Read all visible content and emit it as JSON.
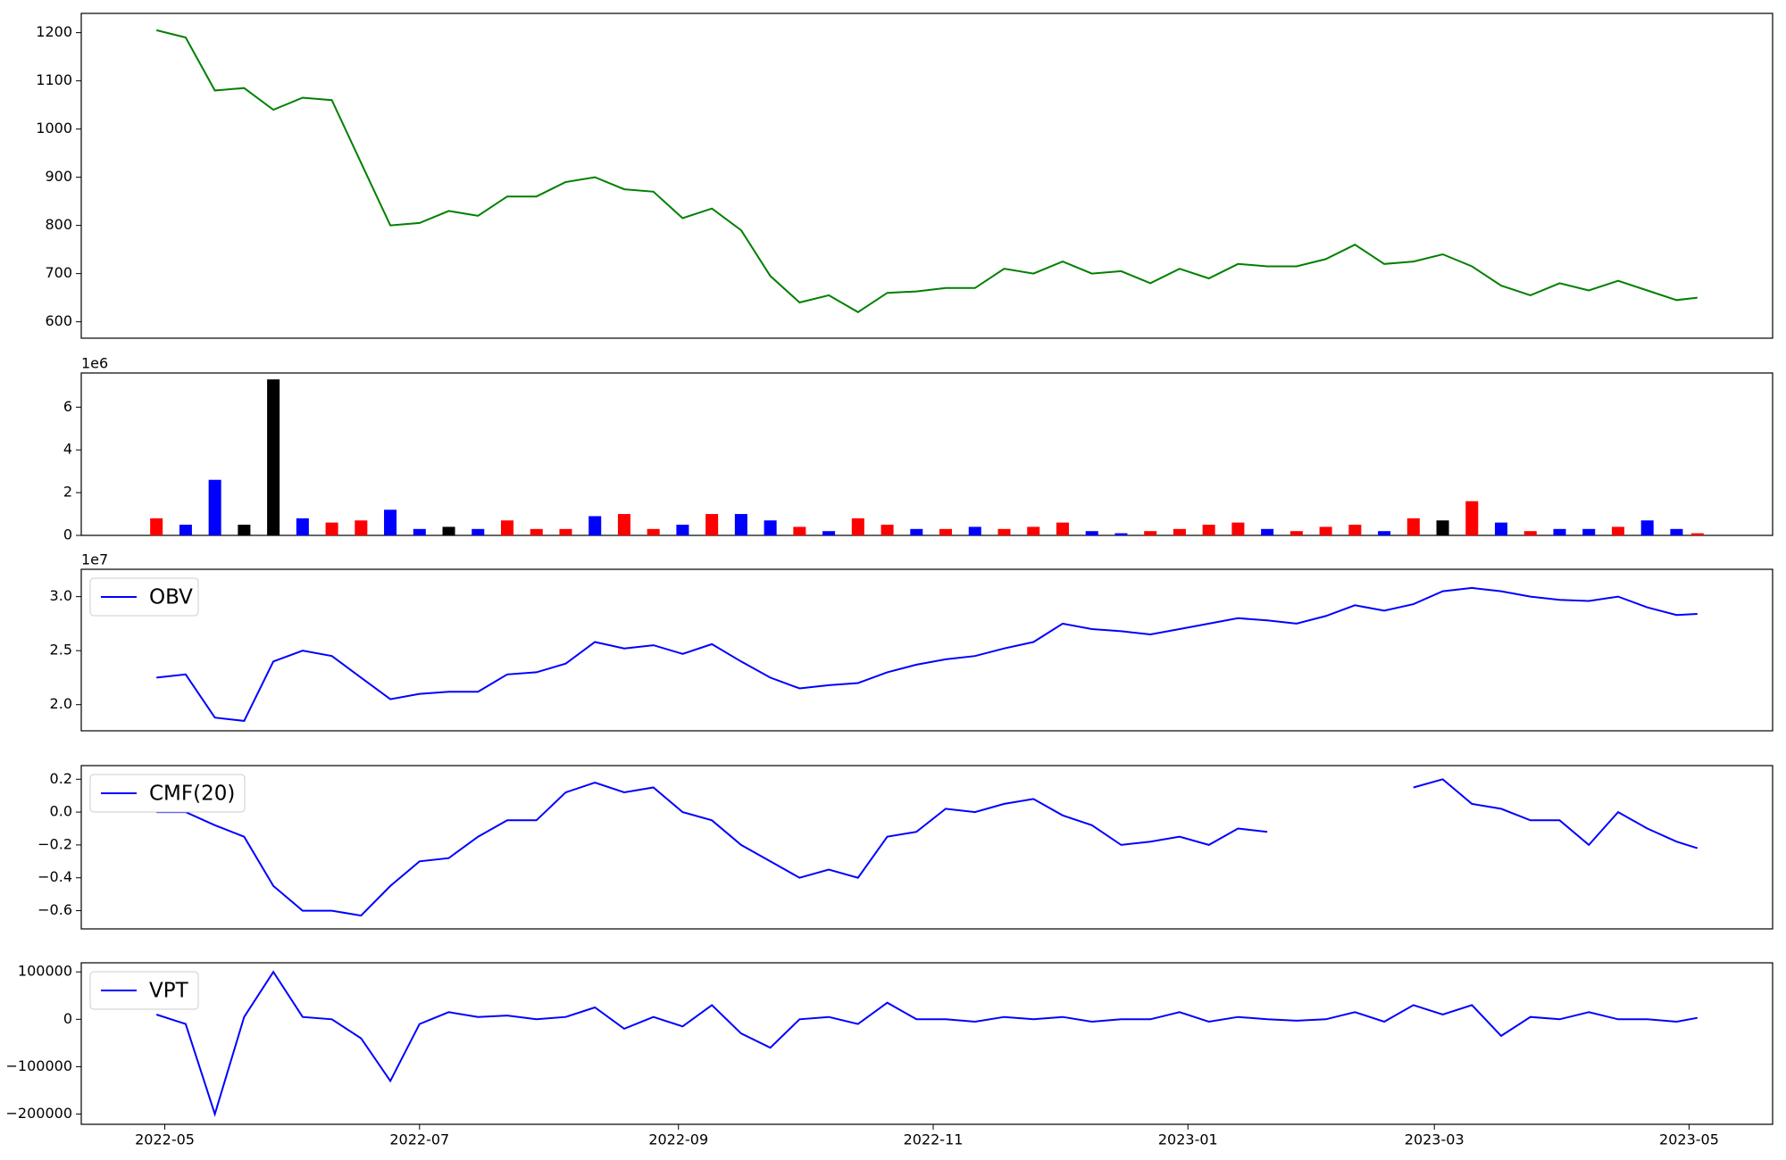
{
  "chart_data": [
    {
      "type": "line",
      "x": [
        "2022-04-29",
        "2022-05-06",
        "2022-05-13",
        "2022-05-20",
        "2022-05-27",
        "2022-06-03",
        "2022-06-10",
        "2022-06-17",
        "2022-06-24",
        "2022-07-01",
        "2022-07-08",
        "2022-07-15",
        "2022-07-22",
        "2022-07-29",
        "2022-08-05",
        "2022-08-12",
        "2022-08-19",
        "2022-08-26",
        "2022-09-02",
        "2022-09-09",
        "2022-09-16",
        "2022-09-23",
        "2022-09-30",
        "2022-10-07",
        "2022-10-14",
        "2022-10-21",
        "2022-10-28",
        "2022-11-04",
        "2022-11-11",
        "2022-11-18",
        "2022-11-25",
        "2022-12-02",
        "2022-12-09",
        "2022-12-16",
        "2022-12-23",
        "2022-12-30",
        "2023-01-06",
        "2023-01-13",
        "2023-01-20",
        "2023-01-27",
        "2023-02-03",
        "2023-02-10",
        "2023-02-17",
        "2023-02-24",
        "2023-03-03",
        "2023-03-10",
        "2023-03-17",
        "2023-03-24",
        "2023-03-31",
        "2023-04-07",
        "2023-04-14",
        "2023-04-21",
        "2023-04-28",
        "2023-05-03"
      ],
      "series": [
        {
          "color": "#008000",
          "values": [
            1205,
            1190,
            1080,
            1085,
            1040,
            1065,
            1060,
            930,
            800,
            805,
            830,
            820,
            860,
            860,
            890,
            900,
            875,
            870,
            815,
            835,
            790,
            695,
            640,
            655,
            620,
            660,
            663,
            670,
            670,
            710,
            700,
            725,
            700,
            705,
            680,
            710,
            690,
            720,
            715,
            715,
            730,
            760,
            720,
            725,
            740,
            715,
            675,
            655,
            680,
            665,
            685,
            665,
            645,
            650
          ]
        }
      ],
      "ylim": [
        566,
        1240
      ],
      "yticks": [
        600,
        700,
        800,
        900,
        1000,
        1100,
        1200
      ]
    },
    {
      "type": "bar",
      "x": [
        "2022-04-29",
        "2022-05-06",
        "2022-05-13",
        "2022-05-20",
        "2022-05-27",
        "2022-06-03",
        "2022-06-10",
        "2022-06-17",
        "2022-06-24",
        "2022-07-01",
        "2022-07-08",
        "2022-07-15",
        "2022-07-22",
        "2022-07-29",
        "2022-08-05",
        "2022-08-12",
        "2022-08-19",
        "2022-08-26",
        "2022-09-02",
        "2022-09-09",
        "2022-09-16",
        "2022-09-23",
        "2022-09-30",
        "2022-10-07",
        "2022-10-14",
        "2022-10-21",
        "2022-10-28",
        "2022-11-04",
        "2022-11-11",
        "2022-11-18",
        "2022-11-25",
        "2022-12-02",
        "2022-12-09",
        "2022-12-16",
        "2022-12-23",
        "2022-12-30",
        "2023-01-06",
        "2023-01-13",
        "2023-01-20",
        "2023-01-27",
        "2023-02-03",
        "2023-02-10",
        "2023-02-17",
        "2023-02-24",
        "2023-03-03",
        "2023-03-10",
        "2023-03-17",
        "2023-03-24",
        "2023-03-31",
        "2023-04-07",
        "2023-04-14",
        "2023-04-21",
        "2023-04-28",
        "2023-05-03"
      ],
      "values": [
        800000,
        500000,
        2600000,
        500000,
        7300000,
        800000,
        600000,
        700000,
        1200000,
        300000,
        400000,
        300000,
        700000,
        300000,
        300000,
        900000,
        1000000,
        300000,
        500000,
        1000000,
        1000000,
        700000,
        400000,
        200000,
        800000,
        500000,
        300000,
        300000,
        400000,
        300000,
        400000,
        600000,
        200000,
        100000,
        200000,
        300000,
        500000,
        600000,
        300000,
        200000,
        400000,
        500000,
        200000,
        800000,
        700000,
        1600000,
        600000,
        200000,
        300000,
        300000,
        400000,
        700000,
        300000,
        100000
      ],
      "colors": [
        "#ff0000",
        "#0000ff",
        "#0000ff",
        "#000000",
        "#000000",
        "#0000ff",
        "#ff0000",
        "#ff0000",
        "#0000ff",
        "#0000ff",
        "#000000",
        "#0000ff",
        "#ff0000",
        "#ff0000",
        "#ff0000",
        "#0000ff",
        "#ff0000",
        "#ff0000",
        "#0000ff",
        "#ff0000",
        "#0000ff",
        "#0000ff",
        "#ff0000",
        "#0000ff",
        "#ff0000",
        "#ff0000",
        "#0000ff",
        "#ff0000",
        "#0000ff",
        "#ff0000",
        "#ff0000",
        "#ff0000",
        "#0000ff",
        "#0000ff",
        "#ff0000",
        "#ff0000",
        "#ff0000",
        "#ff0000",
        "#0000ff",
        "#ff0000",
        "#ff0000",
        "#ff0000",
        "#0000ff",
        "#ff0000",
        "#000000",
        "#ff0000",
        "#0000ff",
        "#ff0000",
        "#0000ff",
        "#0000ff",
        "#ff0000",
        "#0000ff",
        "#0000ff",
        "#ff0000"
      ],
      "offset_label": "1e6",
      "ylim": [
        0,
        7600000
      ],
      "yticks": [
        {
          "value": 0,
          "label": "0"
        },
        {
          "value": 2000000,
          "label": "2"
        },
        {
          "value": 4000000,
          "label": "4"
        },
        {
          "value": 6000000,
          "label": "6"
        }
      ]
    },
    {
      "type": "line",
      "x": [
        "2022-04-29",
        "2022-05-06",
        "2022-05-13",
        "2022-05-20",
        "2022-05-27",
        "2022-06-03",
        "2022-06-10",
        "2022-06-17",
        "2022-06-24",
        "2022-07-01",
        "2022-07-08",
        "2022-07-15",
        "2022-07-22",
        "2022-07-29",
        "2022-08-05",
        "2022-08-12",
        "2022-08-19",
        "2022-08-26",
        "2022-09-02",
        "2022-09-09",
        "2022-09-16",
        "2022-09-23",
        "2022-09-30",
        "2022-10-07",
        "2022-10-14",
        "2022-10-21",
        "2022-10-28",
        "2022-11-04",
        "2022-11-11",
        "2022-11-18",
        "2022-11-25",
        "2022-12-02",
        "2022-12-09",
        "2022-12-16",
        "2022-12-23",
        "2022-12-30",
        "2023-01-06",
        "2023-01-13",
        "2023-01-20",
        "2023-01-27",
        "2023-02-03",
        "2023-02-10",
        "2023-02-17",
        "2023-02-24",
        "2023-03-03",
        "2023-03-10",
        "2023-03-17",
        "2023-03-24",
        "2023-03-31",
        "2023-04-07",
        "2023-04-14",
        "2023-04-21",
        "2023-04-28",
        "2023-05-03"
      ],
      "series": [
        {
          "name": "OBV",
          "color": "#0000ff",
          "values": [
            22500000,
            22800000,
            18800000,
            18500000,
            24000000,
            25000000,
            24500000,
            22500000,
            20500000,
            21000000,
            21200000,
            21200000,
            22800000,
            23000000,
            23800000,
            25800000,
            25200000,
            25500000,
            24700000,
            25600000,
            24000000,
            22500000,
            21500000,
            21800000,
            22000000,
            23000000,
            23700000,
            24200000,
            24500000,
            25200000,
            25800000,
            27500000,
            27000000,
            26800000,
            26500000,
            27000000,
            27500000,
            28000000,
            27800000,
            27500000,
            28200000,
            29200000,
            28700000,
            29300000,
            30500000,
            30800000,
            30500000,
            30000000,
            29700000,
            29600000,
            30000000,
            29000000,
            28300000,
            28400000
          ]
        }
      ],
      "legend": "upper left",
      "offset_label": "1e7",
      "ylim": [
        17580000,
        32530000
      ],
      "yticks": [
        {
          "value": 20000000,
          "label": "2.0"
        },
        {
          "value": 25000000,
          "label": "2.5"
        },
        {
          "value": 30000000,
          "label": "3.0"
        }
      ]
    },
    {
      "type": "line",
      "x": [
        "2022-04-29",
        "2022-05-06",
        "2022-05-13",
        "2022-05-20",
        "2022-05-27",
        "2022-06-03",
        "2022-06-10",
        "2022-06-17",
        "2022-06-24",
        "2022-07-01",
        "2022-07-08",
        "2022-07-15",
        "2022-07-22",
        "2022-07-29",
        "2022-08-05",
        "2022-08-12",
        "2022-08-19",
        "2022-08-26",
        "2022-09-02",
        "2022-09-09",
        "2022-09-16",
        "2022-09-23",
        "2022-09-30",
        "2022-10-07",
        "2022-10-14",
        "2022-10-21",
        "2022-10-28",
        "2022-11-04",
        "2022-11-11",
        "2022-11-18",
        "2022-11-25",
        "2022-12-02",
        "2022-12-09",
        "2022-12-16",
        "2022-12-23",
        "2022-12-30",
        "2023-01-06",
        "2023-01-13",
        "2023-01-20",
        "2023-01-27",
        "2023-02-03",
        "2023-02-10",
        "2023-02-17",
        "2023-02-24",
        "2023-03-03",
        "2023-03-10",
        "2023-03-17",
        "2023-03-24",
        "2023-03-31",
        "2023-04-07",
        "2023-04-14",
        "2023-04-21",
        "2023-04-28",
        "2023-05-03"
      ],
      "series": [
        {
          "name": "CMF(20)",
          "color": "#0000ff",
          "values": [
            0.0,
            0.0,
            -0.08,
            -0.15,
            -0.45,
            -0.6,
            -0.6,
            -0.63,
            -0.45,
            -0.3,
            -0.28,
            -0.15,
            -0.05,
            -0.05,
            0.12,
            0.18,
            0.12,
            0.15,
            0.0,
            -0.05,
            -0.2,
            -0.3,
            -0.4,
            -0.35,
            -0.4,
            -0.15,
            -0.12,
            0.02,
            0.0,
            0.05,
            0.08,
            -0.02,
            -0.08,
            -0.2,
            -0.18,
            -0.15,
            -0.2,
            -0.1,
            -0.12,
            null,
            null,
            null,
            null,
            0.15,
            0.2,
            0.05,
            0.02,
            -0.05,
            -0.05,
            -0.2,
            0.0,
            -0.1,
            -0.18,
            -0.22
          ]
        }
      ],
      "legend": "upper left",
      "ylim": [
        -0.711,
        0.283
      ],
      "yticks": [
        {
          "value": -0.6,
          "label": "−0.6"
        },
        {
          "value": -0.4,
          "label": "−0.4"
        },
        {
          "value": -0.2,
          "label": "−0.2"
        },
        {
          "value": 0,
          "label": "0.0"
        },
        0.2
      ]
    },
    {
      "type": "line",
      "x": [
        "2022-04-29",
        "2022-05-06",
        "2022-05-13",
        "2022-05-20",
        "2022-05-27",
        "2022-06-03",
        "2022-06-10",
        "2022-06-17",
        "2022-06-24",
        "2022-07-01",
        "2022-07-08",
        "2022-07-15",
        "2022-07-22",
        "2022-07-29",
        "2022-08-05",
        "2022-08-12",
        "2022-08-19",
        "2022-08-26",
        "2022-09-02",
        "2022-09-09",
        "2022-09-16",
        "2022-09-23",
        "2022-09-30",
        "2022-10-07",
        "2022-10-14",
        "2022-10-21",
        "2022-10-28",
        "2022-11-04",
        "2022-11-11",
        "2022-11-18",
        "2022-11-25",
        "2022-12-02",
        "2022-12-09",
        "2022-12-16",
        "2022-12-23",
        "2022-12-30",
        "2023-01-06",
        "2023-01-13",
        "2023-01-20",
        "2023-01-27",
        "2023-02-03",
        "2023-02-10",
        "2023-02-17",
        "2023-02-24",
        "2023-03-03",
        "2023-03-10",
        "2023-03-17",
        "2023-03-24",
        "2023-03-31",
        "2023-04-07",
        "2023-04-14",
        "2023-04-21",
        "2023-04-28",
        "2023-05-03"
      ],
      "series": [
        {
          "name": "VPT",
          "color": "#0000ff",
          "values": [
            10000,
            -10000,
            -200000,
            5000,
            100000,
            5000,
            0,
            -40000,
            -130000,
            -10000,
            15000,
            5000,
            8000,
            0,
            5000,
            25000,
            -20000,
            5000,
            -15000,
            30000,
            -30000,
            -60000,
            0,
            5000,
            -10000,
            35000,
            0,
            0,
            -5000,
            5000,
            0,
            5000,
            -5000,
            0,
            0,
            15000,
            -5000,
            5000,
            0,
            -3000,
            0,
            15000,
            -5000,
            30000,
            10000,
            30000,
            -35000,
            5000,
            0,
            15000,
            0,
            0,
            -5000,
            3000
          ]
        }
      ],
      "legend": "upper left",
      "ylim": [
        -221600,
        119200
      ],
      "yticks": [
        {
          "value": -200000,
          "label": "−200000"
        },
        {
          "value": -100000,
          "label": "−100000"
        },
        0,
        100000
      ],
      "xlim": [
        "2022-04-11",
        "2023-05-21"
      ],
      "xticks": [
        {
          "value": "2022-05-01",
          "label": "2022-05"
        },
        {
          "value": "2022-07-01",
          "label": "2022-07"
        },
        {
          "value": "2022-09-01",
          "label": "2022-09"
        },
        {
          "value": "2022-11-01",
          "label": "2022-11"
        },
        {
          "value": "2023-01-01",
          "label": "2023-01"
        },
        {
          "value": "2023-03-01",
          "label": "2023-03"
        },
        {
          "value": "2023-05-01",
          "label": "2023-05"
        }
      ]
    }
  ]
}
